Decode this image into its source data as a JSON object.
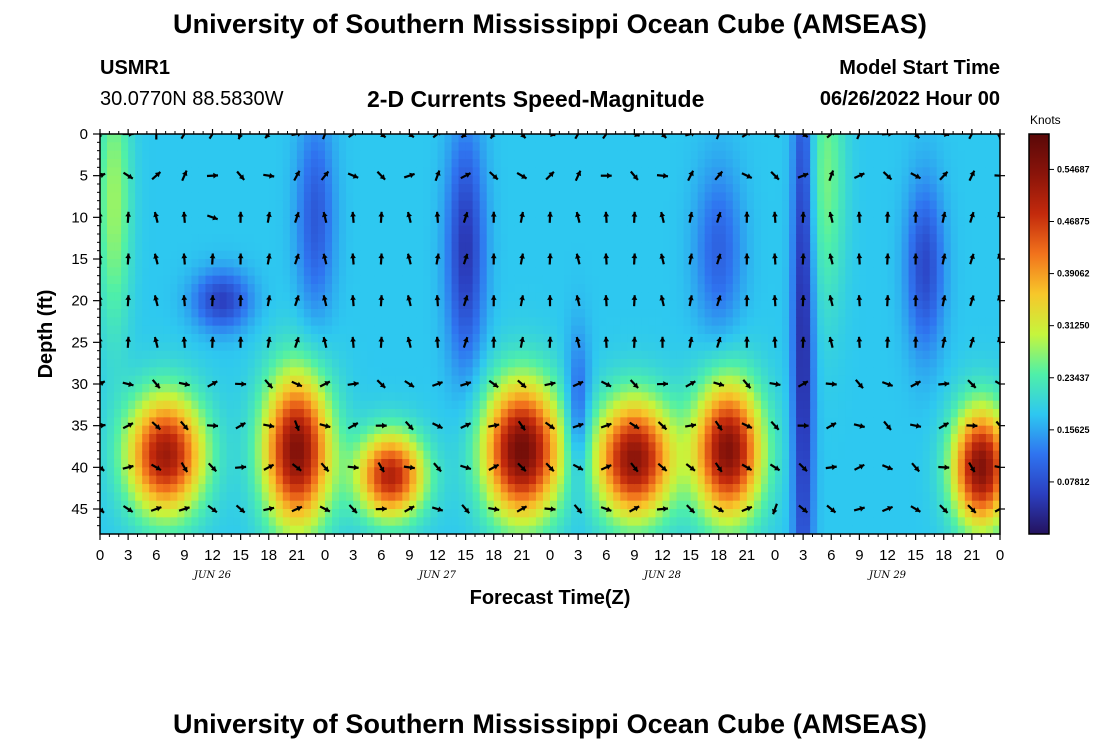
{
  "header": {
    "title": "University of Southern Mississippi Ocean Cube (AMSEAS)",
    "station_id": "USMR1",
    "station_coords": "30.0770N  88.5830W",
    "plot_title": "2-D Currents Speed-Magnitude",
    "model_start_label": "Model Start Time",
    "model_start_value": "06/26/2022 Hour 00"
  },
  "footer": {
    "title": "University of Southern Mississippi Ocean Cube (AMSEAS)"
  },
  "chart_data": {
    "type": "heatmap",
    "title": "2-D Currents Speed-Magnitude",
    "xlabel": "Forecast Time(Z)",
    "ylabel": "Depth (ft)",
    "x_ticks": [
      "0",
      "3",
      "6",
      "9",
      "12",
      "15",
      "18",
      "21",
      "0",
      "3",
      "6",
      "9",
      "12",
      "15",
      "18",
      "21",
      "0",
      "3",
      "6",
      "9",
      "12",
      "15",
      "18",
      "21",
      "0",
      "3",
      "6",
      "9",
      "12",
      "15",
      "18",
      "21",
      "0"
    ],
    "x_range_hours": [
      0,
      96
    ],
    "date_labels": [
      {
        "text": "JUN 26",
        "hour": 12
      },
      {
        "text": "JUN 27",
        "hour": 36
      },
      {
        "text": "JUN 28",
        "hour": 60
      },
      {
        "text": "JUN 29",
        "hour": 84
      }
    ],
    "y_ticks": [
      "0",
      "5",
      "10",
      "15",
      "20",
      "25",
      "30",
      "35",
      "40",
      "45"
    ],
    "y_range_ft": [
      0,
      48
    ],
    "colorbar": {
      "unit": "Knots",
      "ticks": [
        "0.07812",
        "0.15625",
        "0.23437",
        "0.31250",
        "0.39062",
        "0.46875",
        "0.54687"
      ],
      "range": [
        0.0,
        0.6
      ],
      "colors": [
        "#24125e",
        "#2b3fc0",
        "#2f74f0",
        "#2ec8f0",
        "#4ff0a8",
        "#c6f53c",
        "#f7c72a",
        "#f2731c",
        "#c32a0c",
        "#8a140a",
        "#5a0808"
      ]
    },
    "speed_features": [
      {
        "kind": "high",
        "hour": 1.5,
        "depth": 8,
        "sh": 1.8,
        "sd": 16,
        "value": 0.28
      },
      {
        "kind": "high",
        "hour": 7,
        "depth": 38.5,
        "sh": 4,
        "sd": 7,
        "value": 0.52
      },
      {
        "kind": "high",
        "hour": 21,
        "depth": 38,
        "sh": 3.5,
        "sd": 9,
        "value": 0.55
      },
      {
        "kind": "high",
        "hour": 31,
        "depth": 41,
        "sh": 3.5,
        "sd": 5,
        "value": 0.5
      },
      {
        "kind": "high",
        "hour": 45,
        "depth": 38,
        "sh": 4,
        "sd": 8,
        "value": 0.57
      },
      {
        "kind": "high",
        "hour": 57,
        "depth": 39,
        "sh": 4,
        "sd": 7,
        "value": 0.54
      },
      {
        "kind": "high",
        "hour": 67,
        "depth": 38,
        "sh": 3.5,
        "sd": 8,
        "value": 0.55
      },
      {
        "kind": "high",
        "hour": 77.5,
        "depth": 5,
        "sh": 2,
        "sd": 16,
        "value": 0.26
      },
      {
        "kind": "high",
        "hour": 94,
        "depth": 40,
        "sh": 3,
        "sd": 7,
        "value": 0.55
      },
      {
        "kind": "low",
        "hour": 13,
        "depth": 20,
        "sh": 3,
        "sd": 3.5,
        "value": 0.06
      },
      {
        "kind": "low",
        "hour": 23,
        "depth": 10,
        "sh": 2,
        "sd": 12,
        "value": 0.09
      },
      {
        "kind": "low",
        "hour": 39,
        "depth": 14,
        "sh": 2,
        "sd": 14,
        "value": 0.05
      },
      {
        "kind": "low",
        "hour": 51,
        "depth": 34,
        "sh": 1.3,
        "sd": 9,
        "value": 0.08
      },
      {
        "kind": "low",
        "hour": 66,
        "depth": 14,
        "sh": 2.5,
        "sd": 10,
        "value": 0.1
      },
      {
        "kind": "low",
        "hour": 75,
        "depth": 24,
        "sh": 1.1,
        "sd": 40,
        "value": 0.03
      },
      {
        "kind": "low",
        "hour": 88,
        "depth": 16,
        "sh": 2,
        "sd": 10,
        "value": 0.07
      }
    ],
    "current_vectors": [
      {
        "hour": 0,
        "depth": 0,
        "dir_deg": 200
      },
      {
        "hour": 3,
        "depth": 0,
        "dir_deg": 90
      },
      {
        "hour": 6,
        "depth": 0,
        "dir_deg": 0
      },
      {
        "hour": 15,
        "depth": 0,
        "dir_deg": 200
      },
      {
        "hour": 18,
        "depth": 0,
        "dir_deg": 220
      },
      {
        "hour": 39,
        "depth": 0,
        "dir_deg": 230
      },
      {
        "hour": 42,
        "depth": 0,
        "dir_deg": 215
      },
      {
        "hour": 96,
        "depth": 0,
        "dir_deg": 180
      },
      {
        "hour": 0,
        "depth": 5,
        "dir_deg": 70
      },
      {
        "hour": 12,
        "depth": 10,
        "dir_deg": 110
      },
      {
        "hour": 36,
        "depth": 15,
        "dir_deg": 10
      },
      {
        "hour": 48,
        "depth": 20,
        "dir_deg": 0
      },
      {
        "hour": 60,
        "depth": 25,
        "dir_deg": 0
      },
      {
        "hour": 21,
        "depth": 35,
        "dir_deg": 160
      },
      {
        "hour": 45,
        "depth": 40,
        "dir_deg": 135
      },
      {
        "hour": 72,
        "depth": 45,
        "dir_deg": 200
      },
      {
        "hour": 93,
        "depth": 45,
        "dir_deg": 135
      }
    ]
  }
}
